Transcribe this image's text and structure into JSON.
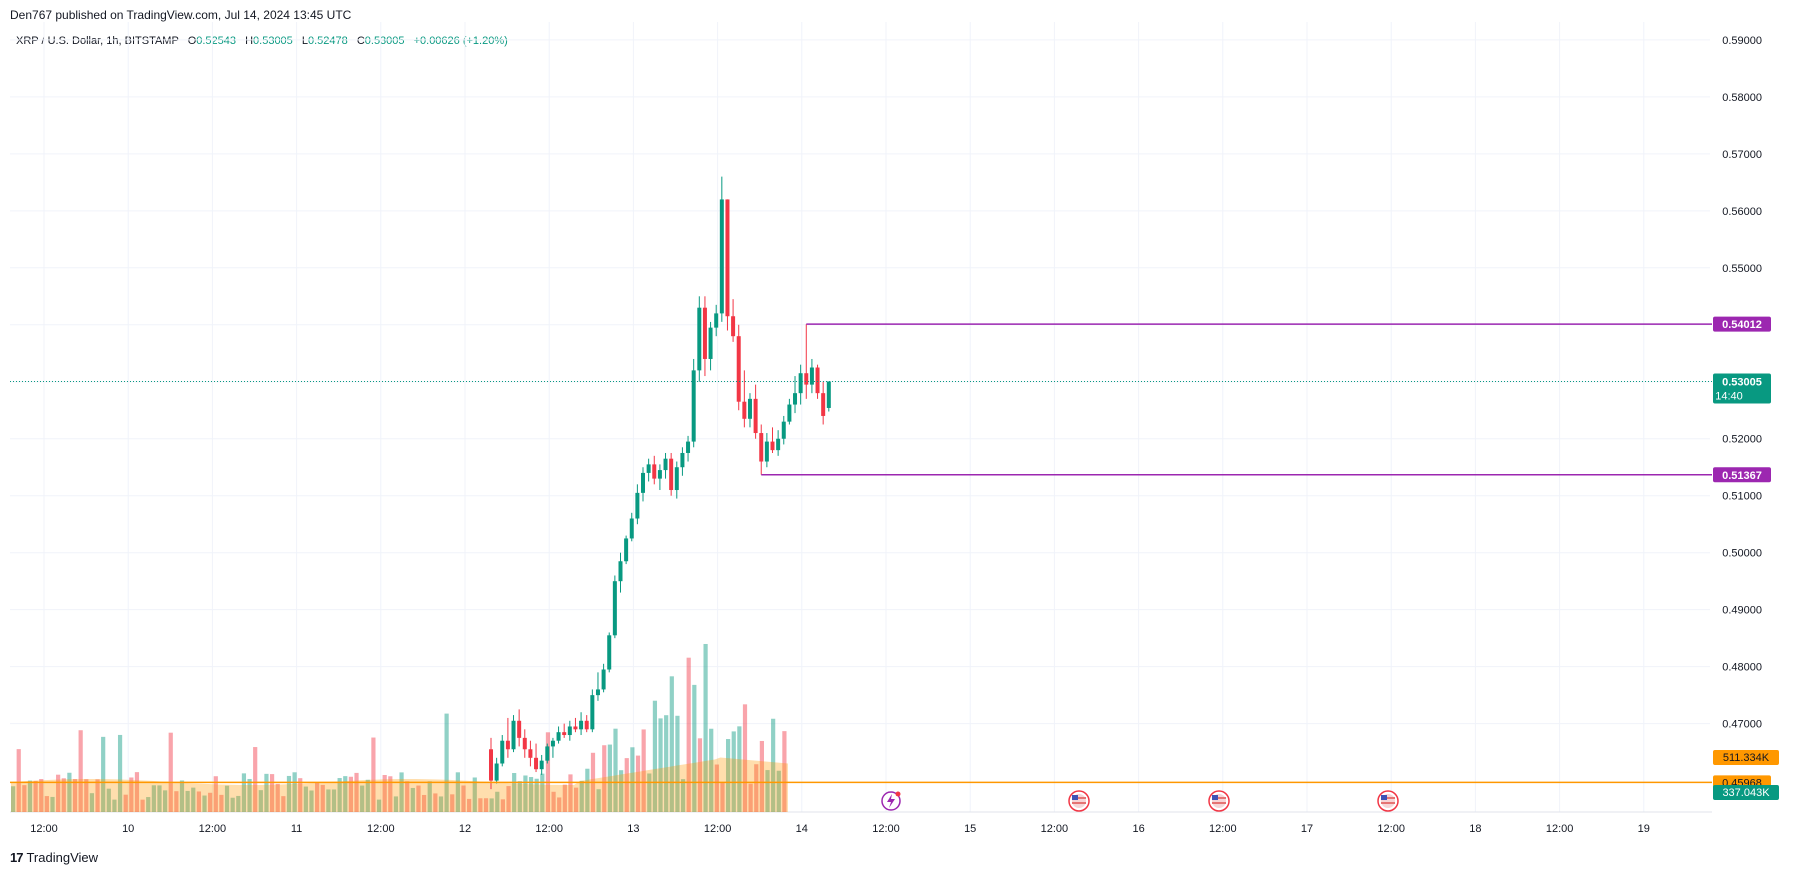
{
  "header": {
    "published": "Den767 published on TradingView.com, Jul 14, 2024 13:45 UTC"
  },
  "legend": {
    "symbol": "XRP / U.S. Dollar, 1h, BITSTAMP",
    "o_label": "O",
    "o": "0.52543",
    "h_label": "H",
    "h": "0.53005",
    "l_label": "L",
    "l": "0.52478",
    "c_label": "C",
    "c": "0.53005",
    "change": "+0.00626 (+1.20%)"
  },
  "footer": {
    "brand": "TradingView",
    "logo_glyph": "17"
  },
  "colors": {
    "up": "#089981",
    "down": "#f23645",
    "level": "#9c27b0",
    "orange": "#ff9800",
    "grid": "#f0f3fa"
  },
  "chart_data": {
    "type": "candlestick",
    "title": "",
    "timeframe": "1h",
    "ylim": [
      0.458,
      0.592
    ],
    "y_ticks": [
      "0.59000",
      "0.58000",
      "0.57000",
      "0.56000",
      "0.55000",
      "0.54000",
      "0.53000",
      "0.52000",
      "0.51000",
      "0.50000",
      "0.49000",
      "0.48000",
      "0.47000"
    ],
    "x_ticks": [
      "12:00",
      "10",
      "12:00",
      "11",
      "12:00",
      "12",
      "12:00",
      "13",
      "12:00",
      "14",
      "12:00",
      "15",
      "12:00",
      "16",
      "12:00",
      "17",
      "12:00",
      "18",
      "12:00",
      "19"
    ],
    "candles": [
      {
        "o": 0.4655,
        "h": 0.4675,
        "l": 0.4585,
        "c": 0.46
      },
      {
        "o": 0.46,
        "h": 0.464,
        "l": 0.4595,
        "c": 0.463
      },
      {
        "o": 0.463,
        "h": 0.468,
        "l": 0.4625,
        "c": 0.467
      },
      {
        "o": 0.467,
        "h": 0.471,
        "l": 0.464,
        "c": 0.4655
      },
      {
        "o": 0.4655,
        "h": 0.4715,
        "l": 0.465,
        "c": 0.4705
      },
      {
        "o": 0.4705,
        "h": 0.4725,
        "l": 0.466,
        "c": 0.4675
      },
      {
        "o": 0.4675,
        "h": 0.469,
        "l": 0.464,
        "c": 0.4655
      },
      {
        "o": 0.4655,
        "h": 0.467,
        "l": 0.4625,
        "c": 0.464
      },
      {
        "o": 0.464,
        "h": 0.4665,
        "l": 0.4615,
        "c": 0.462
      },
      {
        "o": 0.462,
        "h": 0.4645,
        "l": 0.461,
        "c": 0.4635
      },
      {
        "o": 0.4635,
        "h": 0.4665,
        "l": 0.463,
        "c": 0.466
      },
      {
        "o": 0.466,
        "h": 0.4675,
        "l": 0.464,
        "c": 0.467
      },
      {
        "o": 0.467,
        "h": 0.4695,
        "l": 0.4665,
        "c": 0.4685
      },
      {
        "o": 0.4685,
        "h": 0.47,
        "l": 0.4675,
        "c": 0.468
      },
      {
        "o": 0.468,
        "h": 0.4705,
        "l": 0.467,
        "c": 0.4695
      },
      {
        "o": 0.4695,
        "h": 0.471,
        "l": 0.4685,
        "c": 0.469
      },
      {
        "o": 0.469,
        "h": 0.472,
        "l": 0.468,
        "c": 0.4705
      },
      {
        "o": 0.4705,
        "h": 0.4715,
        "l": 0.4685,
        "c": 0.469
      },
      {
        "o": 0.469,
        "h": 0.476,
        "l": 0.4685,
        "c": 0.475
      },
      {
        "o": 0.475,
        "h": 0.479,
        "l": 0.474,
        "c": 0.476
      },
      {
        "o": 0.476,
        "h": 0.4805,
        "l": 0.4755,
        "c": 0.4795
      },
      {
        "o": 0.4795,
        "h": 0.486,
        "l": 0.479,
        "c": 0.4855
      },
      {
        "o": 0.4855,
        "h": 0.496,
        "l": 0.485,
        "c": 0.495
      },
      {
        "o": 0.495,
        "h": 0.5,
        "l": 0.493,
        "c": 0.4985
      },
      {
        "o": 0.4985,
        "h": 0.503,
        "l": 0.498,
        "c": 0.5025
      },
      {
        "o": 0.5025,
        "h": 0.507,
        "l": 0.502,
        "c": 0.506
      },
      {
        "o": 0.506,
        "h": 0.512,
        "l": 0.505,
        "c": 0.5105
      },
      {
        "o": 0.5105,
        "h": 0.515,
        "l": 0.509,
        "c": 0.514
      },
      {
        "o": 0.514,
        "h": 0.5165,
        "l": 0.5125,
        "c": 0.5155
      },
      {
        "o": 0.5155,
        "h": 0.517,
        "l": 0.512,
        "c": 0.513
      },
      {
        "o": 0.513,
        "h": 0.5155,
        "l": 0.511,
        "c": 0.5145
      },
      {
        "o": 0.5145,
        "h": 0.5175,
        "l": 0.513,
        "c": 0.5165
      },
      {
        "o": 0.5165,
        "h": 0.5175,
        "l": 0.51,
        "c": 0.511
      },
      {
        "o": 0.511,
        "h": 0.516,
        "l": 0.5095,
        "c": 0.515
      },
      {
        "o": 0.515,
        "h": 0.5185,
        "l": 0.5135,
        "c": 0.5175
      },
      {
        "o": 0.5175,
        "h": 0.5205,
        "l": 0.516,
        "c": 0.5195
      },
      {
        "o": 0.5195,
        "h": 0.534,
        "l": 0.5185,
        "c": 0.532
      },
      {
        "o": 0.532,
        "h": 0.545,
        "l": 0.53,
        "c": 0.543
      },
      {
        "o": 0.543,
        "h": 0.545,
        "l": 0.531,
        "c": 0.534
      },
      {
        "o": 0.534,
        "h": 0.5405,
        "l": 0.532,
        "c": 0.5395
      },
      {
        "o": 0.5395,
        "h": 0.5435,
        "l": 0.538,
        "c": 0.542
      },
      {
        "o": 0.542,
        "h": 0.566,
        "l": 0.5405,
        "c": 0.562
      },
      {
        "o": 0.562,
        "h": 0.562,
        "l": 0.539,
        "c": 0.5415
      },
      {
        "o": 0.5415,
        "h": 0.5445,
        "l": 0.537,
        "c": 0.538
      },
      {
        "o": 0.538,
        "h": 0.54,
        "l": 0.525,
        "c": 0.5265
      },
      {
        "o": 0.5265,
        "h": 0.532,
        "l": 0.522,
        "c": 0.5235
      },
      {
        "o": 0.5235,
        "h": 0.528,
        "l": 0.522,
        "c": 0.527
      },
      {
        "o": 0.527,
        "h": 0.5295,
        "l": 0.52,
        "c": 0.521
      },
      {
        "o": 0.521,
        "h": 0.5225,
        "l": 0.5137,
        "c": 0.516
      },
      {
        "o": 0.516,
        "h": 0.521,
        "l": 0.515,
        "c": 0.5195
      },
      {
        "o": 0.5195,
        "h": 0.522,
        "l": 0.5175,
        "c": 0.518
      },
      {
        "o": 0.518,
        "h": 0.5215,
        "l": 0.517,
        "c": 0.52
      },
      {
        "o": 0.52,
        "h": 0.524,
        "l": 0.519,
        "c": 0.523
      },
      {
        "o": 0.523,
        "h": 0.527,
        "l": 0.5225,
        "c": 0.526
      },
      {
        "o": 0.526,
        "h": 0.531,
        "l": 0.5245,
        "c": 0.528
      },
      {
        "o": 0.528,
        "h": 0.533,
        "l": 0.526,
        "c": 0.5315
      },
      {
        "o": 0.5315,
        "h": 0.5401,
        "l": 0.527,
        "c": 0.5295
      },
      {
        "o": 0.5295,
        "h": 0.534,
        "l": 0.528,
        "c": 0.5325
      },
      {
        "o": 0.5325,
        "h": 0.533,
        "l": 0.527,
        "c": 0.528
      },
      {
        "o": 0.528,
        "h": 0.53,
        "l": 0.5225,
        "c": 0.524
      },
      {
        "o": 0.5254,
        "h": 0.53005,
        "l": 0.52478,
        "c": 0.53005
      }
    ],
    "volume": {
      "labels": [
        "511.334K",
        "337.043K"
      ]
    },
    "levels": [
      {
        "label": "0.54012",
        "value": 0.54012
      },
      {
        "label": "0.51367",
        "value": 0.51367
      }
    ],
    "last_price": {
      "label": "0.53005",
      "value": 0.53005,
      "countdown": "14:40"
    },
    "horizontal_line": {
      "label": "0.45968",
      "value": 0.45968
    }
  }
}
